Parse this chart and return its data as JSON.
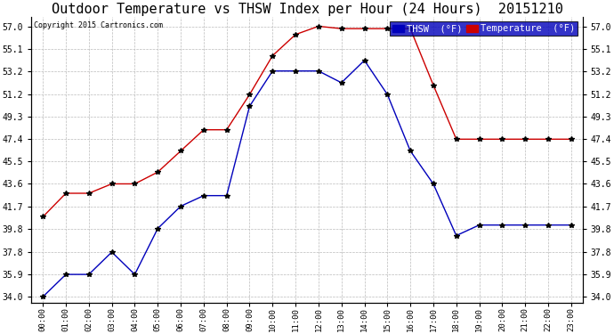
{
  "title": "Outdoor Temperature vs THSW Index per Hour (24 Hours)  20151210",
  "copyright": "Copyright 2015 Cartronics.com",
  "hours": [
    "00:00",
    "01:00",
    "02:00",
    "03:00",
    "04:00",
    "05:00",
    "06:00",
    "07:00",
    "08:00",
    "09:00",
    "10:00",
    "11:00",
    "12:00",
    "13:00",
    "14:00",
    "15:00",
    "16:00",
    "17:00",
    "18:00",
    "19:00",
    "20:00",
    "21:00",
    "22:00",
    "23:00"
  ],
  "thsw": [
    34.0,
    35.9,
    35.9,
    37.8,
    35.9,
    39.8,
    41.7,
    42.6,
    42.6,
    50.2,
    53.2,
    53.2,
    53.2,
    52.2,
    54.1,
    51.2,
    46.4,
    43.6,
    39.2,
    40.1,
    40.1,
    40.1,
    40.1,
    40.1
  ],
  "temperature": [
    40.8,
    42.8,
    42.8,
    43.6,
    43.6,
    44.6,
    46.4,
    48.2,
    48.2,
    51.2,
    54.5,
    56.3,
    57.0,
    56.8,
    56.8,
    56.8,
    56.8,
    52.0,
    47.4,
    47.4,
    47.4,
    47.4,
    47.4,
    47.4
  ],
  "thsw_color": "#0000bb",
  "temp_color": "#cc0000",
  "background_color": "#ffffff",
  "grid_color": "#bbbbbb",
  "yticks": [
    34.0,
    35.9,
    37.8,
    39.8,
    41.7,
    43.6,
    45.5,
    47.4,
    49.3,
    51.2,
    53.2,
    55.1,
    57.0
  ],
  "ylim": [
    33.5,
    57.8
  ],
  "title_fontsize": 11,
  "legend_thsw_label": "THSW  (°F)",
  "legend_temp_label": "Temperature  (°F)"
}
